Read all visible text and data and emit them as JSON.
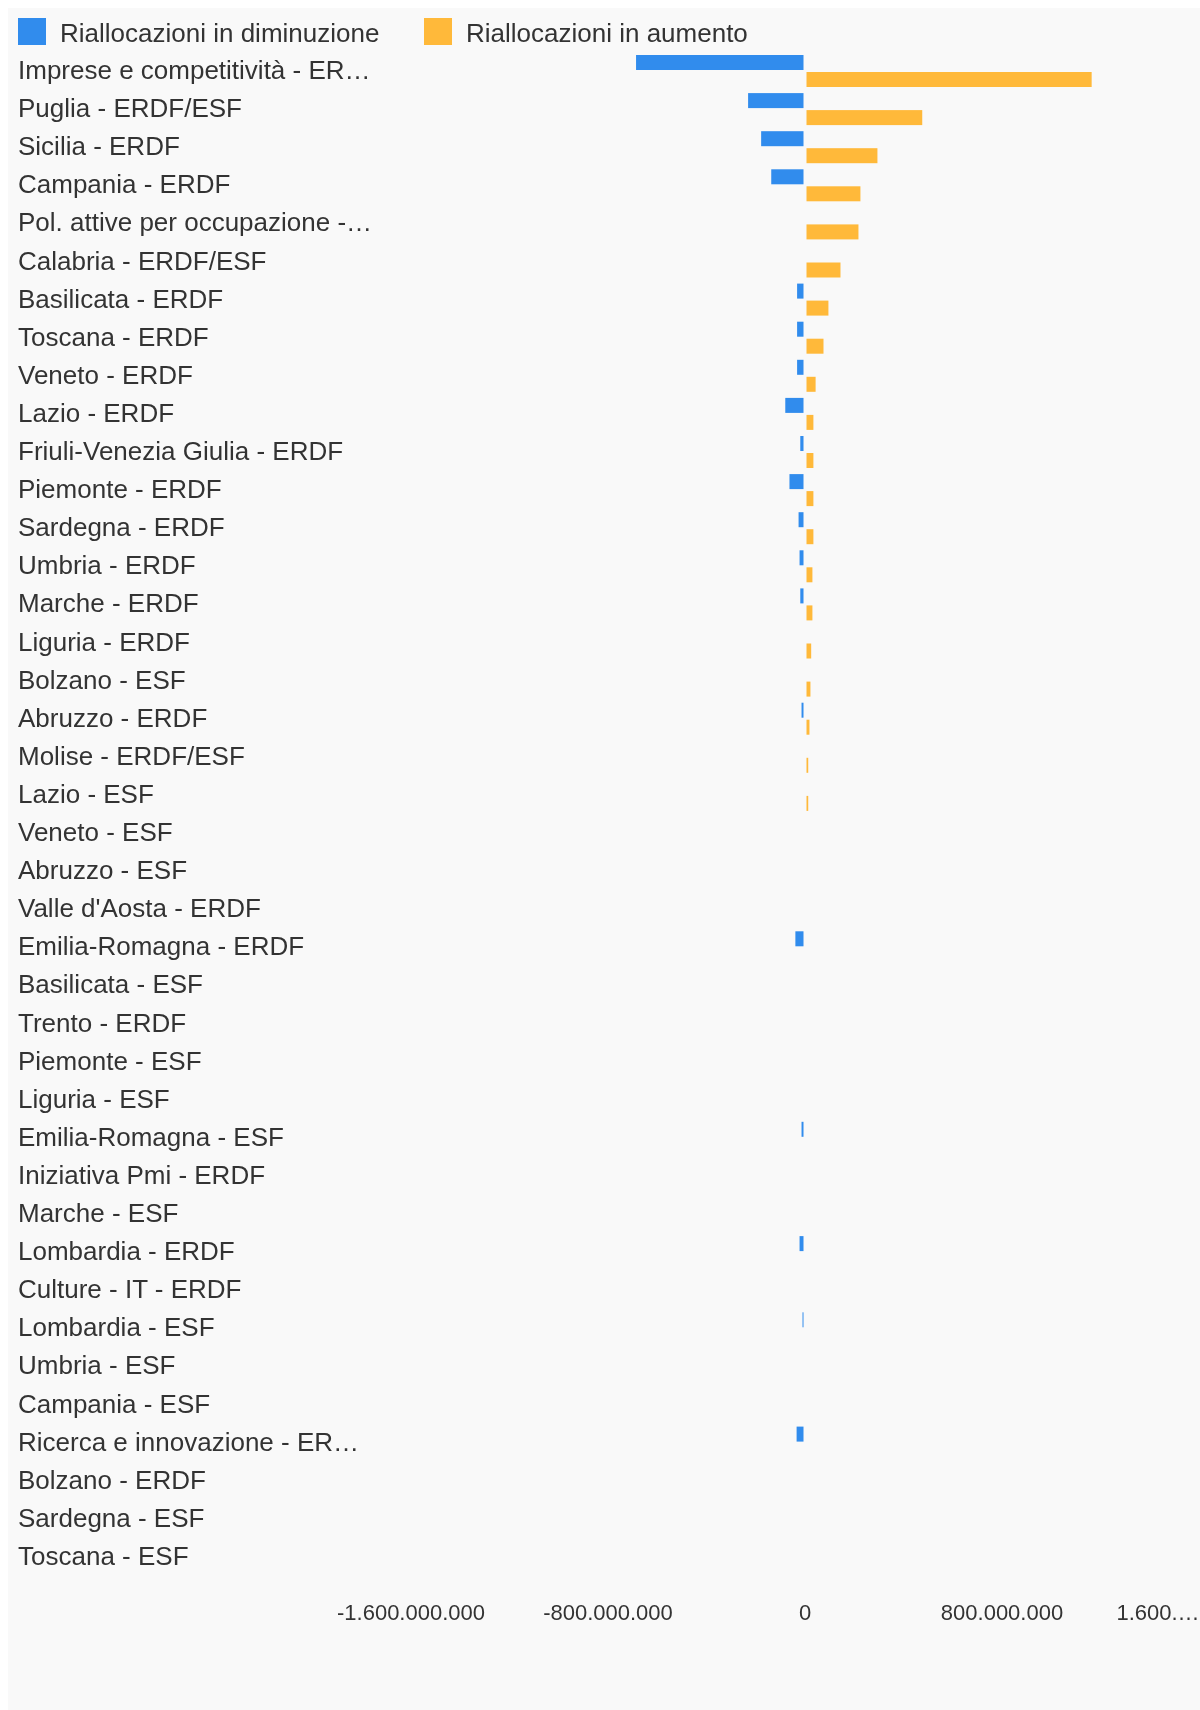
{
  "chart_data": {
    "type": "bar",
    "orientation": "horizontal",
    "legend": "top left",
    "grid": false,
    "categories": [
      "Imprese e competitività - ER…",
      "Puglia - ERDF/ESF",
      "Sicilia - ERDF",
      "Campania - ERDF",
      "Pol. attive per occupazione -…",
      "Calabria - ERDF/ESF",
      "Basilicata - ERDF",
      "Toscana - ERDF",
      "Veneto - ERDF",
      "Lazio - ERDF",
      "Friuli-Venezia Giulia - ERDF",
      "Piemonte - ERDF",
      "Sardegna - ERDF",
      "Umbria - ERDF",
      "Marche - ERDF",
      "Liguria - ERDF",
      "Bolzano - ESF",
      "Abruzzo - ERDF",
      "Molise - ERDF/ESF",
      "Lazio - ESF",
      "Veneto - ESF",
      "Abruzzo - ESF",
      "Valle d'Aosta - ERDF",
      "Emilia-Romagna - ERDF",
      "Basilicata - ESF",
      "Trento - ERDF",
      "Piemonte - ESF",
      "Liguria - ESF",
      "Emilia-Romagna - ESF",
      "Iniziativa Pmi - ERDF",
      "Marche - ESF",
      "Lombardia - ERDF",
      "Culture - IT - ERDF",
      "Lombardia - ESF",
      "Umbria - ESF",
      "Campania - ESF",
      "Ricerca e innovazione - ER…",
      "Bolzano - ERDF",
      "Sardegna - ESF",
      "Toscana - ESF"
    ],
    "series": [
      {
        "name": "Riallocazioni in diminuzione",
        "color": "#318ced",
        "values": [
          -680000000,
          -225000000,
          -172000000,
          -131000000,
          null,
          null,
          -26000000,
          -26000000,
          -26000000,
          -74000000,
          -13000000,
          -57000000,
          -20000000,
          -16000000,
          -13000000,
          null,
          null,
          -8000000,
          null,
          null,
          null,
          null,
          null,
          -33000000,
          null,
          null,
          null,
          null,
          -8000000,
          null,
          null,
          -16000000,
          null,
          -4000000,
          null,
          null,
          -28000000,
          null,
          null,
          null
        ]
      },
      {
        "name": "Riallocazioni in aumento",
        "color": "#ffb93a",
        "values": [
          1158000000,
          470000000,
          288000000,
          219000000,
          211000000,
          138000000,
          89000000,
          69000000,
          37000000,
          28000000,
          28000000,
          28000000,
          28000000,
          24000000,
          24000000,
          19000000,
          16000000,
          12000000,
          7000000,
          7000000,
          null,
          null,
          null,
          null,
          null,
          null,
          null,
          null,
          null,
          null,
          null,
          null,
          null,
          null,
          null,
          null,
          null,
          null,
          null,
          null
        ]
      }
    ],
    "xlim": [
      -1600000000,
      1600000000
    ],
    "xticks": [
      {
        "value": -1600000000,
        "label": "-1.600.000.000"
      },
      {
        "value": -800000000,
        "label": "-800.000.000"
      },
      0,
      {
        "value": 800000000,
        "label": "800.000.000"
      },
      {
        "value": 1600000000,
        "label": "1.600.…"
      }
    ]
  }
}
